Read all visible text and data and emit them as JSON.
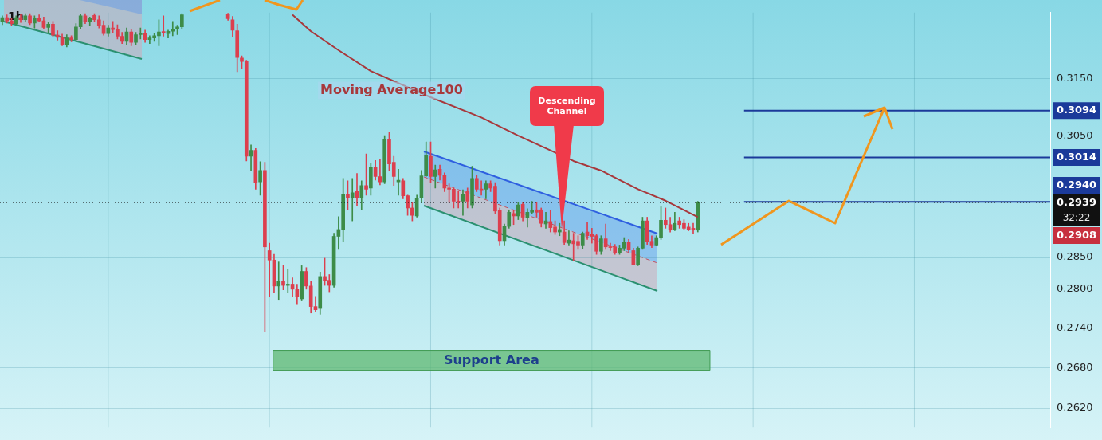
{
  "chart_data": {
    "type": "candlestick",
    "title": "1h",
    "categories": [
      null,
      null,
      null,
      null,
      null,
      null,
      null,
      null,
      null,
      null,
      null,
      null,
      null,
      null,
      null,
      null,
      null,
      null,
      null,
      null,
      null,
      null,
      null,
      null,
      null,
      null,
      null,
      null,
      null,
      null,
      null,
      null,
      null,
      null,
      null,
      null,
      null,
      null,
      null,
      null,
      null,
      null,
      null,
      null,
      null,
      null,
      null,
      null,
      null,
      null,
      null,
      null,
      null,
      null,
      null,
      null,
      null,
      null,
      null,
      null,
      null,
      null,
      null,
      null,
      null,
      null,
      null,
      null,
      null,
      null,
      null,
      null,
      null,
      null,
      null,
      null,
      null,
      null,
      null,
      null,
      null,
      null,
      null,
      null,
      null,
      null,
      null,
      null,
      null,
      null,
      null,
      null,
      null,
      null,
      null,
      null,
      null,
      null,
      null,
      null,
      null,
      null,
      null,
      null,
      null,
      null,
      null,
      null,
      null,
      null,
      null,
      null,
      null,
      null,
      null,
      null,
      null,
      null,
      null,
      null,
      null,
      null,
      null,
      null,
      null,
      null,
      null,
      null,
      null,
      null,
      null,
      null,
      null,
      null,
      null,
      null,
      null,
      null,
      null,
      null,
      null,
      null,
      null,
      null,
      null,
      null,
      null,
      null,
      null,
      null,
      null,
      null,
      null,
      null,
      null,
      null,
      null,
      null,
      null,
      null,
      null,
      null,
      null,
      null,
      null,
      null,
      null,
      null,
      null,
      null,
      null,
      null,
      null,
      null,
      null,
      null,
      null,
      null,
      null,
      null,
      null,
      null,
      null,
      null,
      null,
      null,
      null,
      null,
      null,
      null,
      null,
      null,
      null,
      null,
      null,
      null,
      null,
      null,
      null,
      null,
      null,
      null,
      null,
      null,
      null,
      null,
      null,
      null,
      null,
      null,
      null,
      null,
      null,
      null,
      null,
      null,
      null,
      null,
      null,
      null,
      null,
      null,
      null,
      null,
      null,
      null,
      null,
      null
    ],
    "ohlc": [
      [
        0.3251,
        0.3262,
        0.3246,
        0.3259
      ],
      [
        0.3259,
        0.3264,
        0.3249,
        0.3253
      ],
      [
        0.3253,
        0.3258,
        0.3244,
        0.3248
      ],
      [
        0.3248,
        0.3262,
        0.3246,
        0.3259
      ],
      [
        0.3259,
        0.3265,
        0.325,
        0.3255
      ],
      [
        0.3255,
        0.3266,
        0.3252,
        0.3262
      ],
      [
        0.3262,
        0.3266,
        0.3246,
        0.3249
      ],
      [
        0.3249,
        0.3262,
        0.324,
        0.3257
      ],
      [
        0.3257,
        0.3264,
        0.3251,
        0.3253
      ],
      [
        0.3253,
        0.326,
        0.3238,
        0.3241
      ],
      [
        0.3241,
        0.325,
        0.3232,
        0.3247
      ],
      [
        0.3247,
        0.3252,
        0.3224,
        0.3227
      ],
      [
        0.3227,
        0.3235,
        0.3218,
        0.3223
      ],
      [
        0.3223,
        0.3229,
        0.3208,
        0.321
      ],
      [
        0.321,
        0.3228,
        0.3206,
        0.3222
      ],
      [
        0.3222,
        0.3226,
        0.3215,
        0.3219
      ],
      [
        0.3219,
        0.3248,
        0.3216,
        0.3242
      ],
      [
        0.3242,
        0.3265,
        0.3238,
        0.3262
      ],
      [
        0.3262,
        0.3266,
        0.3248,
        0.3252
      ],
      [
        0.3252,
        0.326,
        0.3245,
        0.3257
      ],
      [
        0.3263,
        0.3266,
        0.3252,
        0.3255
      ],
      [
        0.3255,
        0.3262,
        0.324,
        0.3245
      ],
      [
        0.3245,
        0.3253,
        0.3227,
        0.323
      ],
      [
        0.323,
        0.3245,
        0.3225,
        0.324
      ],
      [
        0.324,
        0.3252,
        0.3232,
        0.3237
      ],
      [
        0.3237,
        0.3246,
        0.322,
        0.3225
      ],
      [
        0.3225,
        0.3232,
        0.3212,
        0.3216
      ],
      [
        0.3216,
        0.324,
        0.321,
        0.3233
      ],
      [
        0.3233,
        0.3238,
        0.3208,
        0.3214
      ],
      [
        0.3214,
        0.3232,
        0.321,
        0.3228
      ],
      [
        0.3228,
        0.324,
        0.322,
        0.323
      ],
      [
        0.323,
        0.3236,
        0.3214,
        0.3219
      ],
      [
        0.3219,
        0.3226,
        0.3212,
        0.3222
      ],
      [
        0.3222,
        0.323,
        0.3216,
        0.3226
      ],
      [
        0.3226,
        0.3255,
        0.3208,
        0.3233
      ],
      [
        0.3233,
        0.3262,
        0.3225,
        0.3232
      ],
      [
        0.323,
        0.3236,
        0.3222,
        0.3234
      ],
      [
        0.3234,
        0.3252,
        0.3226,
        0.3238
      ],
      [
        0.3238,
        0.3245,
        0.3228,
        0.3242
      ],
      [
        0.3242,
        0.3266,
        0.3238,
        0.3264
      ],
      null,
      null,
      null,
      null,
      null,
      null,
      null,
      null,
      null,
      [
        0.3265,
        0.3267,
        0.3254,
        0.3257
      ],
      [
        0.3255,
        0.3261,
        0.3224,
        0.3236
      ],
      [
        0.3235,
        0.3247,
        0.3162,
        0.3187
      ],
      [
        0.3186,
        0.319,
        0.3168,
        0.318
      ],
      [
        0.318,
        0.3182,
        0.3008,
        0.3016
      ],
      [
        0.3016,
        0.3035,
        0.2992,
        0.3026
      ],
      [
        0.3026,
        0.3029,
        0.2961,
        0.2972
      ],
      [
        0.2973,
        0.3007,
        0.2951,
        0.2992
      ],
      [
        0.2992,
        0.3006,
        0.2734,
        0.2867
      ],
      [
        0.2861,
        0.2873,
        0.2788,
        0.2846
      ],
      [
        0.2846,
        0.2855,
        0.2794,
        0.2805
      ],
      [
        0.2805,
        0.2843,
        0.2784,
        0.2812
      ],
      [
        0.2812,
        0.2838,
        0.2799,
        0.2806
      ],
      [
        0.2806,
        0.2832,
        0.2794,
        0.2808
      ],
      [
        0.2808,
        0.2818,
        0.2788,
        0.28
      ],
      [
        0.28,
        0.2808,
        0.2776,
        0.2788
      ],
      [
        0.2785,
        0.2837,
        0.2783,
        0.2828
      ],
      [
        0.2828,
        0.2834,
        0.28,
        0.2805
      ],
      [
        0.2805,
        0.2812,
        0.2763,
        0.2773
      ],
      [
        0.2773,
        0.2789,
        0.2765,
        0.2768
      ],
      [
        0.277,
        0.2827,
        0.2761,
        0.282
      ],
      [
        0.282,
        0.2849,
        0.2806,
        0.2814
      ],
      [
        0.2814,
        0.2823,
        0.2796,
        0.2806
      ],
      [
        0.2806,
        0.2889,
        0.2803,
        0.2884
      ],
      [
        0.2884,
        0.2916,
        0.2863,
        0.2895
      ],
      [
        0.2895,
        0.2979,
        0.2875,
        0.2953
      ],
      [
        0.2953,
        0.2975,
        0.2927,
        0.2946
      ],
      [
        0.2947,
        0.2979,
        0.2909,
        0.2955
      ],
      [
        0.2957,
        0.2987,
        0.2933,
        0.2946
      ],
      [
        0.2946,
        0.2975,
        0.2927,
        0.2967
      ],
      [
        0.2967,
        0.302,
        0.2951,
        0.2961
      ],
      [
        0.2963,
        0.3004,
        0.2951,
        0.2997
      ],
      [
        0.2998,
        0.3009,
        0.2976,
        0.2982
      ],
      [
        0.2982,
        0.3011,
        0.2968,
        0.2973
      ],
      [
        0.2973,
        0.3051,
        0.297,
        0.3045
      ],
      [
        0.3045,
        0.3057,
        0.2991,
        0.3003
      ],
      [
        0.3006,
        0.3016,
        0.2967,
        0.2982
      ],
      [
        0.2973,
        0.2994,
        0.2951,
        0.2976
      ],
      [
        0.2975,
        0.2979,
        0.2945,
        0.295
      ],
      [
        0.295,
        0.2951,
        0.2918,
        0.293
      ],
      [
        0.293,
        0.2939,
        0.2909,
        0.2918
      ],
      [
        0.2917,
        0.2951,
        0.2915,
        0.2946
      ],
      [
        0.2946,
        0.2992,
        0.2939,
        0.2983
      ],
      [
        0.2983,
        0.304,
        0.2982,
        0.3017
      ],
      [
        0.3016,
        0.304,
        0.2972,
        0.2982
      ],
      [
        0.2982,
        0.3001,
        0.2963,
        0.2993
      ],
      [
        0.2994,
        0.3001,
        0.2976,
        0.2984
      ],
      [
        0.2984,
        0.2988,
        0.2957,
        0.2963
      ],
      [
        0.2963,
        0.297,
        0.2939,
        0.2961
      ],
      [
        0.2961,
        0.2963,
        0.293,
        0.2941
      ],
      [
        0.2941,
        0.2957,
        0.293,
        0.294
      ],
      [
        0.2941,
        0.296,
        0.2918,
        0.2953
      ],
      [
        0.2957,
        0.2963,
        0.293,
        0.2941
      ],
      [
        0.2935,
        0.2999,
        0.293,
        0.2979
      ],
      [
        0.2979,
        0.2984,
        0.2957,
        0.2961
      ],
      [
        0.2961,
        0.2975,
        0.2951,
        0.296
      ],
      [
        0.2961,
        0.2975,
        0.2945,
        0.297
      ],
      [
        0.297,
        0.2975,
        0.2957,
        0.2963
      ],
      [
        0.2966,
        0.2972,
        0.2921,
        0.2925
      ],
      [
        0.2926,
        0.293,
        0.287,
        0.2877
      ],
      [
        0.2877,
        0.2904,
        0.287,
        0.29
      ],
      [
        0.29,
        0.2927,
        0.2897,
        0.2923
      ],
      [
        0.2921,
        0.2927,
        0.2903,
        0.2917
      ],
      [
        0.2917,
        0.2939,
        0.2911,
        0.2935
      ],
      [
        0.2936,
        0.2939,
        0.2909,
        0.2915
      ],
      [
        0.2914,
        0.2929,
        0.2899,
        0.2923
      ],
      [
        0.2923,
        0.2941,
        0.2921,
        0.2926
      ],
      [
        0.2927,
        0.2939,
        0.2915,
        0.2923
      ],
      [
        0.2927,
        0.293,
        0.2899,
        0.2905
      ],
      [
        0.2904,
        0.2923,
        0.2897,
        0.2909
      ],
      [
        0.2908,
        0.2926,
        0.2891,
        0.2898
      ],
      [
        0.2899,
        0.2909,
        0.2887,
        0.2891
      ],
      [
        0.2891,
        0.2905,
        0.2885,
        0.2895
      ],
      [
        0.2891,
        0.2909,
        0.2871,
        0.2874
      ],
      [
        0.2873,
        0.2893,
        0.287,
        0.2878
      ],
      [
        0.2877,
        0.2889,
        0.2845,
        0.2872
      ],
      [
        0.2876,
        0.2885,
        0.2863,
        0.287
      ],
      [
        0.287,
        0.2891,
        0.2864,
        0.2889
      ],
      [
        0.2891,
        0.2906,
        0.2879,
        0.2885
      ],
      [
        0.2887,
        0.2897,
        0.2873,
        0.2884
      ],
      [
        0.2885,
        0.2887,
        0.2855,
        0.286
      ],
      [
        0.286,
        0.2885,
        0.2855,
        0.288
      ],
      [
        0.288,
        0.2904,
        0.2863,
        0.2867
      ],
      [
        0.2867,
        0.2873,
        0.2861,
        0.2866
      ],
      [
        0.2867,
        0.2871,
        0.2855,
        0.2858
      ],
      [
        0.2858,
        0.287,
        0.2855,
        0.2865
      ],
      [
        0.2865,
        0.2882,
        0.2861,
        0.2874
      ],
      [
        0.2874,
        0.2879,
        0.2859,
        0.2862
      ],
      [
        0.2861,
        0.2865,
        0.2838,
        0.2838
      ],
      [
        0.2838,
        0.2867,
        0.2837,
        0.2865
      ],
      [
        0.2865,
        0.2915,
        0.2863,
        0.2909
      ],
      [
        0.2909,
        0.2915,
        0.2871,
        0.2876
      ],
      [
        0.2876,
        0.2885,
        0.2866,
        0.287
      ],
      [
        0.287,
        0.2885,
        0.2869,
        0.2882
      ],
      [
        0.2882,
        0.2932,
        0.2879,
        0.291
      ],
      [
        0.291,
        0.293,
        0.2897,
        0.2903
      ],
      [
        0.2903,
        0.2915,
        0.2891,
        0.2894
      ],
      [
        0.2895,
        0.2923,
        0.2893,
        0.2905
      ],
      [
        0.2909,
        0.2915,
        0.2897,
        0.2903
      ],
      [
        0.2905,
        0.2911,
        0.2894,
        0.2897
      ],
      [
        0.2899,
        0.2905,
        0.2893,
        0.2895
      ],
      [
        0.2897,
        0.2905,
        0.2889,
        0.2894
      ],
      [
        0.2894,
        0.2941,
        0.2891,
        0.2939
      ],
      null,
      null,
      null,
      null,
      null,
      null,
      null,
      null,
      null,
      null,
      null,
      null,
      null,
      null,
      null,
      null,
      null,
      null,
      null,
      null,
      null,
      null,
      null,
      null,
      null,
      null,
      null,
      null,
      null,
      null,
      null,
      null,
      null,
      null,
      null,
      null,
      null,
      null,
      null,
      null,
      null,
      null,
      null,
      null,
      null,
      null,
      null,
      null,
      null,
      null,
      null,
      null,
      null,
      null,
      null,
      null,
      null,
      null,
      null,
      null,
      null,
      null,
      null,
      null,
      null,
      null,
      null,
      null,
      null,
      null,
      null,
      null,
      null,
      null,
      null,
      null
    ],
    "series": [
      {
        "type": "line",
        "name": "Moving Average100",
        "color": "#a8383c",
        "values": [
          null,
          null,
          null,
          null,
          null,
          null,
          null,
          null,
          null,
          null,
          null,
          null,
          null,
          null,
          null,
          null,
          null,
          null,
          null,
          null,
          null,
          null,
          null,
          null,
          null,
          null,
          null,
          null,
          null,
          null,
          null,
          null,
          null,
          null,
          null,
          null,
          null,
          null,
          null,
          null,
          null,
          null,
          null,
          null,
          null,
          null,
          null,
          null,
          null,
          null,
          null,
          null,
          null,
          null,
          null,
          null,
          null,
          null,
          null,
          null,
          null,
          null,
          null,
          0.3264,
          null,
          null,
          null,
          0.3234,
          null,
          null,
          null,
          null,
          null,
          0.32,
          null,
          null,
          null,
          null,
          null,
          null,
          0.3163,
          null,
          null,
          null,
          null,
          null,
          null,
          null,
          null,
          null,
          null,
          null,
          null,
          0.3117,
          null,
          null,
          null,
          null,
          null,
          null,
          null,
          null,
          null,
          null,
          0.3082,
          null,
          null,
          null,
          null,
          null,
          null,
          null,
          0.3051,
          null,
          null,
          null,
          null,
          null,
          null,
          null,
          null,
          null,
          null,
          null,
          0.3008,
          null,
          null,
          null,
          null,
          null,
          0.2992,
          null,
          null,
          null,
          null,
          null,
          null,
          null,
          0.2961,
          null,
          null,
          null,
          null,
          null,
          0.2942,
          null,
          null,
          null,
          null,
          null,
          null,
          0.2915,
          null,
          null,
          null,
          null,
          null,
          null,
          null,
          null,
          null,
          null,
          null,
          null,
          null,
          null,
          null,
          null,
          null,
          null,
          null,
          null,
          null,
          null,
          null,
          null,
          null,
          null,
          null,
          null,
          null,
          null,
          null,
          null,
          null,
          null,
          null,
          null,
          null,
          null,
          null,
          null,
          null,
          null,
          null,
          null,
          null,
          null,
          null,
          null,
          null,
          null,
          null,
          null,
          null,
          null,
          null,
          null,
          null,
          null,
          null,
          null,
          null,
          null,
          null,
          null,
          null,
          null,
          null,
          null,
          null,
          null,
          null,
          null,
          null,
          null,
          null,
          null
        ]
      }
    ],
    "ylim": [
      0.2592,
      0.3268
    ],
    "yticks": [
      {
        "value": 0.262,
        "label": "0.2620"
      },
      {
        "value": 0.268,
        "label": "0.2680"
      },
      {
        "value": 0.274,
        "label": "0.2740"
      },
      {
        "value": 0.28,
        "label": "0.2800"
      },
      {
        "value": 0.285,
        "label": "0.2850"
      },
      {
        "value": 0.305,
        "label": "0.3050"
      },
      {
        "value": 0.315,
        "label": "0.3150"
      }
    ],
    "log": "y",
    "grid": true,
    "ref_lines": [
      {
        "axis": "y",
        "value": 0.3094,
        "label": "0.3094",
        "color": "#1b3a9a"
      },
      {
        "axis": "y",
        "value": 0.3014,
        "label": "0.3014",
        "color": "#1b3a9a"
      },
      {
        "axis": "y",
        "value": 0.294,
        "label": "0.2940",
        "color": "#1b3a9a"
      },
      {
        "axis": "y",
        "value": 0.2939,
        "label": "0.2939",
        "color": "#111111",
        "line_style": "dotted"
      }
    ],
    "bands": [
      {
        "axis": "y",
        "from": 0.2676,
        "to": 0.2706,
        "label": "Support Area",
        "color": "#5fb872"
      }
    ],
    "annotations": [
      "Descending Channel",
      "32:22",
      "0.2908"
    ]
  }
}
